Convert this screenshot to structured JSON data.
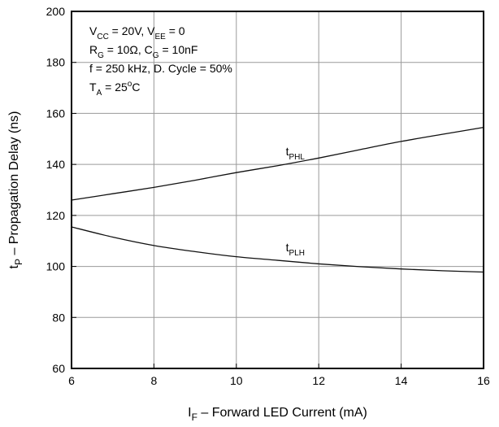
{
  "chart_data": {
    "type": "line",
    "xlabel": {
      "main": "I",
      "sub": "F",
      "rest": " – Forward LED Current (mA)"
    },
    "ylabel": {
      "main": "t",
      "sub": "P",
      "rest": " – Propagation Delay (ns)"
    },
    "xlim": [
      6,
      16
    ],
    "ylim": [
      60,
      200
    ],
    "xticks": [
      6,
      8,
      10,
      12,
      14,
      16
    ],
    "yticks": [
      60,
      80,
      100,
      120,
      140,
      160,
      180,
      200
    ],
    "grid": true,
    "conditions": [
      [
        {
          "t": "V"
        },
        {
          "t": "CC",
          "sub": true
        },
        {
          "t": " = 20V, V"
        },
        {
          "t": "EE",
          "sub": true
        },
        {
          "t": " = 0"
        }
      ],
      [
        {
          "t": "R"
        },
        {
          "t": "G",
          "sub": true
        },
        {
          "t": " = 10Ω, C"
        },
        {
          "t": "G",
          "sub": true
        },
        {
          "t": " = 10nF"
        }
      ],
      [
        {
          "t": "f = 250 kHz, D. Cycle = 50%"
        }
      ],
      [
        {
          "t": "T"
        },
        {
          "t": "A",
          "sub": true
        },
        {
          "t": " = 25"
        },
        {
          "t": "o",
          "sup": true
        },
        {
          "t": "C"
        }
      ]
    ],
    "series": [
      {
        "name": "t_PHL",
        "label": {
          "main": "t",
          "sub": "PHL"
        },
        "x": [
          6,
          7,
          8,
          9,
          10,
          11,
          12,
          13,
          14,
          15,
          16
        ],
        "y": [
          126,
          128.5,
          131,
          133.8,
          136.8,
          139.5,
          142.5,
          145.8,
          149,
          151.8,
          154.5
        ]
      },
      {
        "name": "t_PLH",
        "label": {
          "main": "t",
          "sub": "PLH"
        },
        "x": [
          6,
          7,
          8,
          9,
          10,
          11,
          12,
          13,
          14,
          15,
          16
        ],
        "y": [
          115.5,
          111.5,
          108.2,
          105.8,
          103.8,
          102.4,
          101,
          99.9,
          99,
          98.3,
          97.8
        ]
      }
    ],
    "series_labels_at": [
      {
        "series": "t_PHL",
        "x": 11.2,
        "y": 143.5
      },
      {
        "series": "t_PLH",
        "x": 11.2,
        "y": 106
      }
    ]
  }
}
